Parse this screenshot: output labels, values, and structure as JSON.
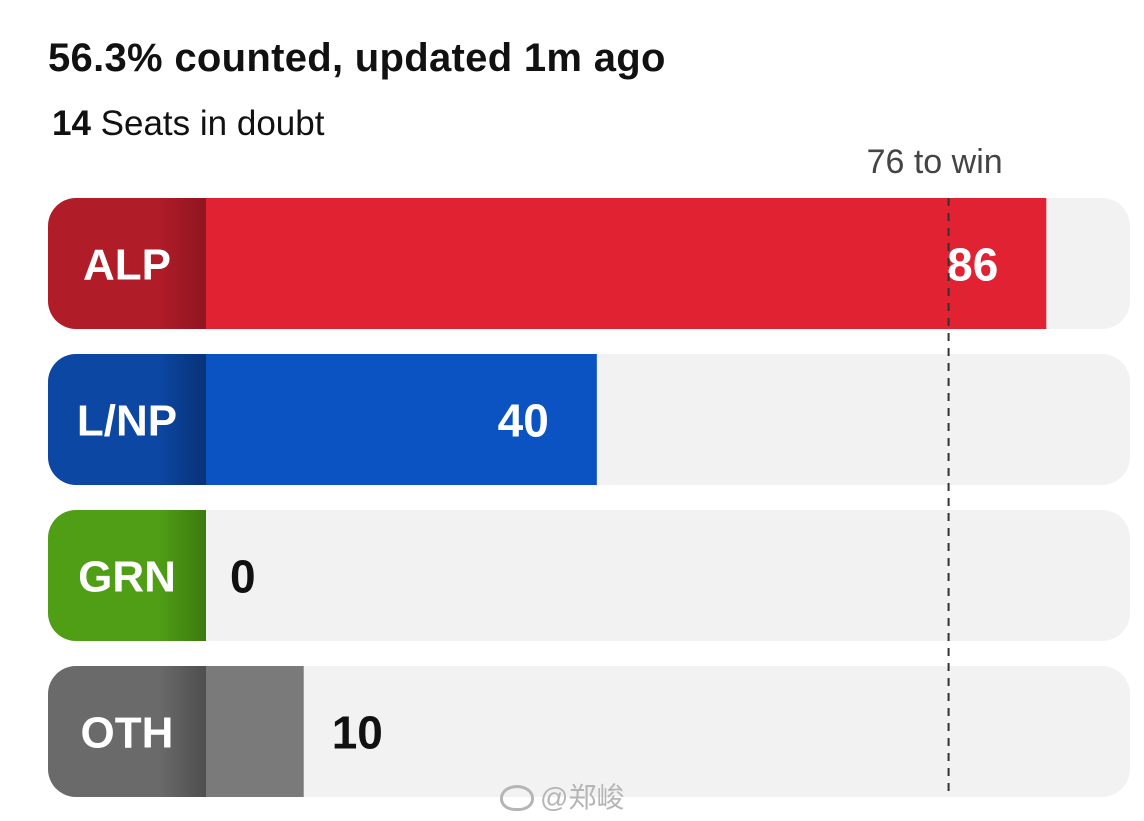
{
  "header": {
    "counted": "56.3% counted, updated 1m ago",
    "doubt_count": "14",
    "doubt_text": " Seats in doubt"
  },
  "watermark": "@郑峻",
  "chart_data": {
    "type": "bar",
    "orientation": "horizontal",
    "title": "56.3% counted, updated 1m ago",
    "xlabel": "",
    "ylabel": "",
    "xlim": [
      0,
      96
    ],
    "target": {
      "value": 76,
      "label": "76 to win"
    },
    "categories": [
      "ALP",
      "L/NP",
      "GRN",
      "OTH"
    ],
    "values": [
      86,
      40,
      0,
      10
    ],
    "colors": {
      "ALP": {
        "fill": "#e02232",
        "label_bg": "#b01c28",
        "label_bg_dark": "#8f1520"
      },
      "L/NP": {
        "fill": "#0b53c2",
        "label_bg": "#0b47a3",
        "label_bg_dark": "#0a3278"
      },
      "GRN": {
        "fill": "#4f9e16",
        "label_bg": "#4f9e16",
        "label_bg_dark": "#3c7a0f"
      },
      "OTH": {
        "fill": "#7a7a7a",
        "label_bg": "#6a6a6a",
        "label_bg_dark": "#4e4e4e"
      }
    },
    "track_color": "#f2f2f2",
    "grid": false,
    "legend": "none"
  }
}
